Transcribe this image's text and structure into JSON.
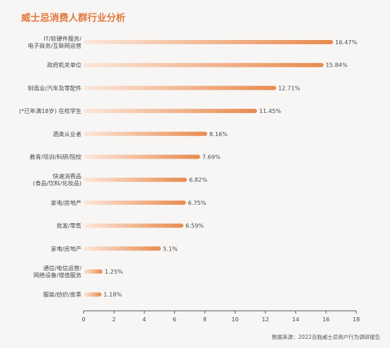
{
  "title": "威士忌消费人群行业分析",
  "source": "数据来源：2022百瓶威士忌用户行为调研报告",
  "chart_data": {
    "type": "bar",
    "orientation": "horizontal",
    "title": "威士忌消费人群行业分析",
    "xlabel": "",
    "ylabel": "",
    "xlim": [
      0,
      18
    ],
    "xticks": [
      0,
      2,
      4,
      6,
      8,
      10,
      12,
      14,
      16,
      18
    ],
    "grid": false,
    "categories": [
      [
        "IT/软硬件服务/",
        "电子商务/互联网运营"
      ],
      [
        "政府机关单位"
      ],
      [
        "制造业/汽车及零配件"
      ],
      [
        "(*已年满18岁) 在校学生"
      ],
      [
        "酒类从业者"
      ],
      [
        "教育/培训/科研/院校"
      ],
      [
        "快速消费品",
        "(食品/饮料/化妆品)"
      ],
      [
        "家电/房地产"
      ],
      [
        "批发/零售"
      ],
      [
        "家电/房地产"
      ],
      [
        "通信/电信运营/",
        "网络设备/增值服务"
      ],
      [
        "服装/纺织/皮革"
      ]
    ],
    "values": [
      16.47,
      15.84,
      12.71,
      11.45,
      8.16,
      7.69,
      6.82,
      6.75,
      6.59,
      5.1,
      1.25,
      1.18
    ],
    "value_labels": [
      "16.47%",
      "15.84%",
      "12.71%",
      "11.45%",
      "8.16%",
      "7.69%",
      "6.82%",
      "6.75%",
      "6.59%",
      "5.1%",
      "1.25%",
      "1.18%"
    ],
    "colors": {
      "bar_start": "#fbe7da",
      "bar_end": "#e98a4e",
      "axis": "#555555",
      "title": "#e2773b"
    }
  }
}
